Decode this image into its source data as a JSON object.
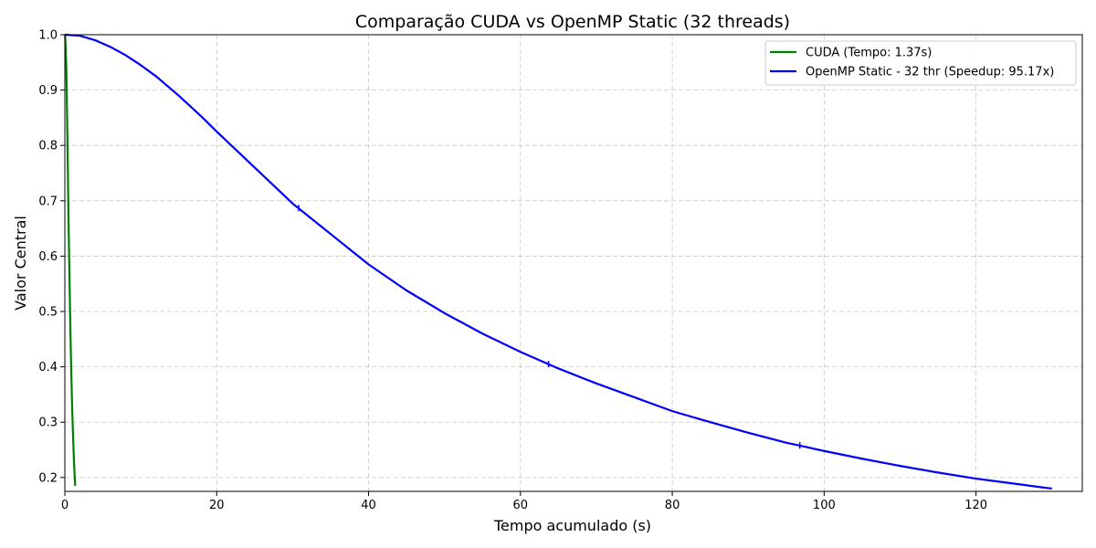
{
  "chart_data": {
    "type": "line",
    "title": "Comparação CUDA vs OpenMP Static (32 threads)",
    "xlabel": "Tempo acumulado (s)",
    "ylabel": "Valor Central",
    "xlim": [
      0,
      134
    ],
    "ylim": [
      0.175,
      1.0
    ],
    "xticks": [
      0,
      20,
      40,
      60,
      80,
      100,
      120
    ],
    "xtick_labels": [
      "0",
      "20",
      "40",
      "60",
      "80",
      "100",
      "120"
    ],
    "yticks": [
      0.2,
      0.3,
      0.4,
      0.5,
      0.6,
      0.7,
      0.8,
      0.9,
      1.0
    ],
    "ytick_labels": [
      "0.2",
      "0.3",
      "0.4",
      "0.5",
      "0.6",
      "0.7",
      "0.8",
      "0.9",
      "1.0"
    ],
    "grid": true,
    "legend_position": "top-right",
    "series": [
      {
        "name": "CUDA (Tempo: 1.37s)",
        "color": "#008000",
        "x": [
          0,
          0.05,
          0.1,
          0.15,
          0.2,
          0.3,
          0.4,
          0.5,
          0.6,
          0.7,
          0.8,
          0.9,
          1.0,
          1.1,
          1.2,
          1.3,
          1.37
        ],
        "y": [
          1.0,
          0.995,
          0.98,
          0.96,
          0.94,
          0.85,
          0.75,
          0.65,
          0.57,
          0.49,
          0.42,
          0.36,
          0.31,
          0.27,
          0.23,
          0.2,
          0.185
        ]
      },
      {
        "name": "OpenMP Static - 32 thr (Speedup: 95.17x)",
        "color": "#0000ff",
        "x": [
          0,
          2,
          4,
          6,
          8,
          10,
          12,
          15,
          18,
          20,
          25,
          30,
          35,
          40,
          45,
          50,
          55,
          60,
          65,
          70,
          75,
          80,
          85,
          90,
          95,
          100,
          105,
          110,
          115,
          120,
          125,
          130
        ],
        "y": [
          1.0,
          0.998,
          0.99,
          0.978,
          0.963,
          0.945,
          0.925,
          0.89,
          0.852,
          0.825,
          0.76,
          0.695,
          0.64,
          0.585,
          0.538,
          0.497,
          0.46,
          0.427,
          0.397,
          0.37,
          0.345,
          0.32,
          0.3,
          0.281,
          0.263,
          0.248,
          0.234,
          0.221,
          0.209,
          0.198,
          0.189,
          0.18
        ],
        "markers": [
          [
            30.8,
            0.687
          ],
          [
            63.7,
            0.405
          ],
          [
            96.8,
            0.258
          ]
        ]
      }
    ]
  }
}
